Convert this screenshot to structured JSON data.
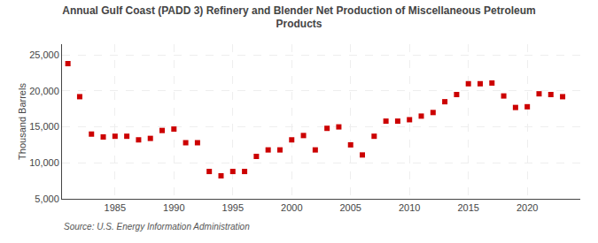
{
  "chart_data": {
    "type": "scatter",
    "title": "Annual Gulf Coast (PADD 3) Refinery and Blender Net Production of Miscellaneous Petroleum\nProducts",
    "ylabel": "Thousand Barrels",
    "annotations": [
      "Source: U.S. Energy Information Administration"
    ],
    "x": [
      1981,
      1982,
      1983,
      1984,
      1985,
      1986,
      1987,
      1988,
      1989,
      1990,
      1991,
      1992,
      1993,
      1994,
      1995,
      1996,
      1997,
      1998,
      1999,
      2000,
      2001,
      2002,
      2003,
      2004,
      2005,
      2006,
      2007,
      2008,
      2009,
      2010,
      2011,
      2012,
      2013,
      2014,
      2015,
      2016,
      2017,
      2018,
      2019,
      2020,
      2021,
      2022,
      2023
    ],
    "values": [
      23800,
      19200,
      14000,
      13600,
      13700,
      13700,
      13200,
      13400,
      14500,
      14700,
      12800,
      12800,
      8800,
      8200,
      8800,
      8800,
      10900,
      11800,
      11800,
      13200,
      13800,
      11800,
      14800,
      15000,
      12500,
      11100,
      13700,
      15800,
      15800,
      16000,
      16500,
      17000,
      18500,
      19500,
      21000,
      21000,
      21100,
      19300,
      17700,
      17800,
      19600,
      19500,
      19200
    ],
    "color": "#cc0000",
    "marker": "square",
    "xlim": [
      1980.5,
      2024.5
    ],
    "xticks": [
      1985,
      1990,
      1995,
      2000,
      2005,
      2010,
      2015,
      2020
    ],
    "ylim": [
      5000,
      26500
    ],
    "yticks": [
      {
        "value": 5000,
        "label": "5,000"
      },
      {
        "value": 10000,
        "label": "10,000"
      },
      {
        "value": 15000,
        "label": "15,000"
      },
      {
        "value": 20000,
        "label": "20,000"
      },
      {
        "value": 25000,
        "label": "25,000"
      }
    ],
    "grid": true
  }
}
